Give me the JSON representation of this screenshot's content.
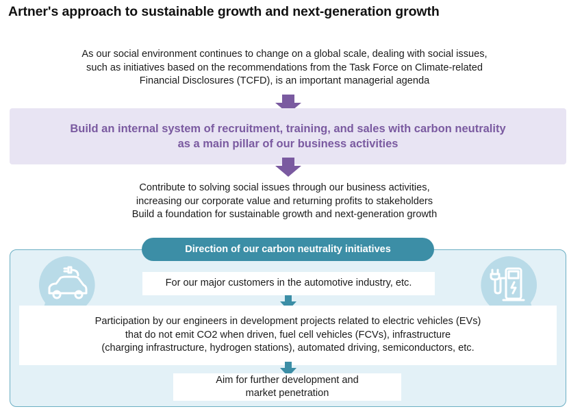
{
  "title": "Artner's approach to sustainable growth and next-generation growth",
  "intro": [
    "As our social environment continues to change on a global scale, dealing with social issues,",
    "such as initiatives based on the recommendations from the Task Force on Climate-related",
    "Financial Disclosures (TCFD), is an important managerial agenda"
  ],
  "pillar": [
    "Build an internal system of recruitment, training, and sales with carbon neutrality",
    "as a main pillar of our business activities"
  ],
  "contribute": [
    "Contribute to solving social issues through our business activities,",
    "increasing our corporate value and returning profits to stakeholders",
    "Build a foundation for sustainable growth and next-generation growth"
  ],
  "direction": {
    "heading": "Direction of our carbon neutrality initiatives",
    "customers": "For our major customers in the automotive industry, etc.",
    "participation": [
      "Participation by our engineers in development projects related to electric vehicles (EVs)",
      "that do not emit CO2 when driven, fuel cell vehicles (FCVs), infrastructure",
      "(charging infrastructure, hydrogen stations), automated driving, semiconductors, etc."
    ],
    "aim": [
      "Aim for further development and",
      "market penetration"
    ]
  },
  "icons": {
    "left": "electric-car-icon",
    "right": "charging-station-icon"
  },
  "colors": {
    "purple_arrow": "#7a5aa0",
    "pillar_text": "#7a5aa0",
    "pillar_bg": "#e8e4f3",
    "teal": "#3c8ea6",
    "panel_bg": "#e3f1f7",
    "bubble": "#b9dbe8"
  }
}
